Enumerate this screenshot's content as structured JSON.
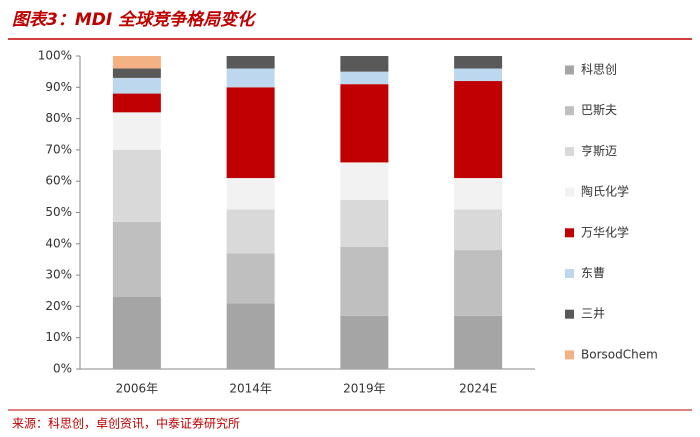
{
  "chart_data": {
    "type": "stacked_bar",
    "title": "图表3：MDI 全球竞争格局变化",
    "source": "来源：科思创，卓创资讯，中泰证券研究所",
    "categories": [
      "2006年",
      "2014年",
      "2019年",
      "2024E"
    ],
    "series": [
      {
        "name": "科思创",
        "color": "#a5a5a5",
        "values": [
          23,
          21,
          17,
          17
        ]
      },
      {
        "name": "巴斯夫",
        "color": "#bfbfbf",
        "values": [
          24,
          16,
          22,
          21
        ]
      },
      {
        "name": "亨斯迈",
        "color": "#d9d9d9",
        "values": [
          23,
          14,
          15,
          13
        ]
      },
      {
        "name": "陶氏化学",
        "color": "#f2f2f2",
        "values": [
          12,
          10,
          12,
          10
        ]
      },
      {
        "name": "万华化学",
        "color": "#c00000",
        "values": [
          6,
          29,
          25,
          31
        ]
      },
      {
        "name": "东曹",
        "color": "#bdd7ee",
        "values": [
          5,
          6,
          4,
          4
        ]
      },
      {
        "name": "三井",
        "color": "#595959",
        "values": [
          3,
          4,
          5,
          4
        ]
      },
      {
        "name": "BorsodChem",
        "color": "#f4b183",
        "values": [
          4,
          0,
          0,
          0
        ]
      }
    ],
    "ylim": [
      0,
      100
    ],
    "yticks": [
      {
        "value": 0,
        "label": "0%"
      },
      {
        "value": 10,
        "label": "10%"
      },
      {
        "value": 20,
        "label": "20%"
      },
      {
        "value": 30,
        "label": "30%"
      },
      {
        "value": 40,
        "label": "40%"
      },
      {
        "value": 50,
        "label": "50%"
      },
      {
        "value": 60,
        "label": "60%"
      },
      {
        "value": 70,
        "label": "70%"
      },
      {
        "value": 80,
        "label": "80%"
      },
      {
        "value": 90,
        "label": "90%"
      },
      {
        "value": 100,
        "label": "100%"
      }
    ]
  }
}
